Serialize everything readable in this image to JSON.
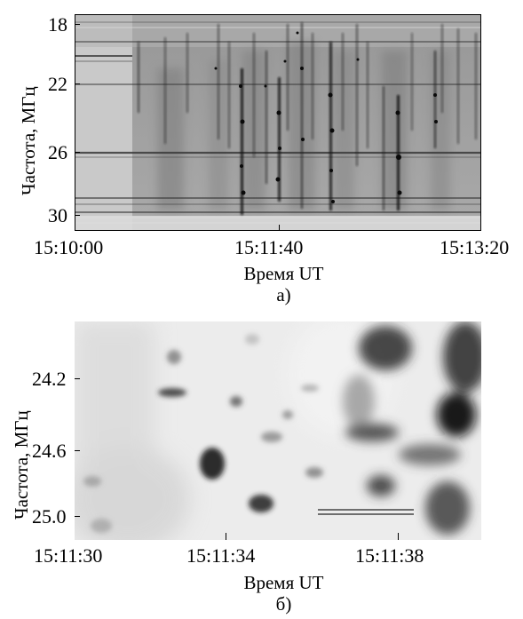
{
  "panel_a": {
    "ylabel": "Частота, МГц",
    "xlabel": "Время UT",
    "label": "а)",
    "yticks": [
      "18",
      "22",
      "26",
      "30"
    ],
    "xticks": [
      "15:10:00",
      "15:11:40",
      "15:13:20"
    ]
  },
  "panel_b": {
    "ylabel": "Частота, МГц",
    "xlabel": "Время UT",
    "label": "б)",
    "yticks": [
      "24.2",
      "24.6",
      "25.0"
    ],
    "xticks": [
      "15:11:30",
      "15:11:34",
      "15:11:38"
    ]
  },
  "chart_data": [
    {
      "type": "heatmap",
      "xlabel": "Время UT",
      "ylabel": "Частота, МГц",
      "x_ticks": [
        "15:10:00",
        "15:11:40",
        "15:13:20"
      ],
      "y_ticks": [
        18,
        22,
        26,
        30
      ],
      "ylim": [
        30.6,
        17.6
      ],
      "colormap": "grayscale",
      "annotation": "а)"
    },
    {
      "type": "heatmap",
      "xlabel": "Время UT",
      "ylabel": "Частота, МГц",
      "x_ticks": [
        "15:11:30",
        "15:11:34",
        "15:11:38"
      ],
      "y_ticks": [
        24.2,
        24.6,
        25.0
      ],
      "ylim": [
        25.2,
        23.85
      ],
      "colormap": "grayscale",
      "annotation": "б)"
    }
  ]
}
